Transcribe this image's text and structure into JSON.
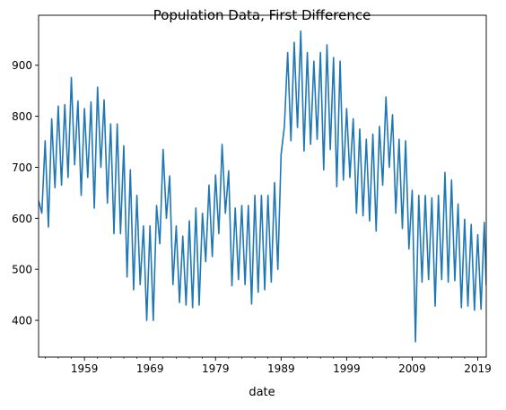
{
  "chart_data": {
    "type": "line",
    "title": "Population Data, First Difference",
    "xlabel": "date",
    "ylabel": "",
    "x_tick_labels": [
      "1959",
      "1969",
      "1979",
      "1989",
      "1999",
      "2009",
      "2019"
    ],
    "x_tick_values": [
      1959,
      1969,
      1979,
      1989,
      1999,
      2009,
      2019
    ],
    "y_tick_labels": [
      "400",
      "500",
      "600",
      "700",
      "800",
      "900"
    ],
    "y_tick_values": [
      400,
      500,
      600,
      700,
      800,
      900
    ],
    "xlim": [
      1952.0,
      2020.3
    ],
    "ylim": [
      328,
      998
    ],
    "grid": false,
    "legend": "none",
    "colors": {
      "line": "#1f77b4",
      "axes": "#000000",
      "background": "#ffffff"
    },
    "series": [
      {
        "x": [
          1952.0,
          1952.5,
          1953.0,
          1953.5,
          1954.0,
          1954.5,
          1955.0,
          1955.5,
          1956.0,
          1956.5,
          1957.0,
          1957.5,
          1958.0,
          1958.5,
          1959.0,
          1959.5,
          1960.0,
          1960.5,
          1961.0,
          1961.5,
          1962.0,
          1962.5,
          1963.0,
          1963.5,
          1964.0,
          1964.5,
          1965.0,
          1965.5,
          1966.0,
          1966.5,
          1967.0,
          1967.5,
          1968.0,
          1968.5,
          1969.0,
          1969.5,
          1970.0,
          1970.5,
          1971.0,
          1971.5,
          1972.0,
          1972.5,
          1973.0,
          1973.5,
          1974.0,
          1974.5,
          1975.0,
          1975.5,
          1976.0,
          1976.5,
          1977.0,
          1977.5,
          1978.0,
          1978.5,
          1979.0,
          1979.5,
          1980.0,
          1980.5,
          1981.0,
          1981.5,
          1982.0,
          1982.5,
          1983.0,
          1983.5,
          1984.0,
          1984.5,
          1985.0,
          1985.5,
          1986.0,
          1986.5,
          1987.0,
          1987.5,
          1988.0,
          1988.5,
          1989.0,
          1989.5,
          1990.0,
          1990.5,
          1991.0,
          1991.5,
          1992.0,
          1992.5,
          1993.0,
          1993.5,
          1994.0,
          1994.5,
          1995.0,
          1995.5,
          1996.0,
          1996.5,
          1997.0,
          1997.5,
          1998.0,
          1998.5,
          1999.0,
          1999.5,
          2000.0,
          2000.5,
          2001.0,
          2001.5,
          2002.0,
          2002.5,
          2003.0,
          2003.5,
          2004.0,
          2004.5,
          2005.0,
          2005.5,
          2006.0,
          2006.5,
          2007.0,
          2007.5,
          2008.0,
          2008.5,
          2009.0,
          2009.5,
          2010.0,
          2010.5,
          2011.0,
          2011.5,
          2012.0,
          2012.5,
          2013.0,
          2013.5,
          2014.0,
          2014.5,
          2015.0,
          2015.5,
          2016.0,
          2016.5,
          2017.0,
          2017.5,
          2018.0,
          2018.5,
          2019.0,
          2019.5,
          2020.0,
          2020.3
        ],
        "y": [
          635,
          610,
          752,
          583,
          795,
          660,
          820,
          665,
          823,
          680,
          876,
          705,
          830,
          645,
          815,
          680,
          828,
          620,
          857,
          700,
          832,
          630,
          785,
          570,
          785,
          570,
          742,
          485,
          695,
          460,
          645,
          470,
          585,
          400,
          585,
          400,
          625,
          550,
          735,
          600,
          683,
          470,
          585,
          435,
          565,
          430,
          595,
          425,
          620,
          430,
          610,
          515,
          665,
          525,
          685,
          570,
          745,
          610,
          693,
          468,
          620,
          480,
          625,
          470,
          625,
          432,
          645,
          455,
          645,
          460,
          645,
          475,
          670,
          500,
          725,
          780,
          925,
          752,
          945,
          778,
          967,
          732,
          925,
          745,
          908,
          755,
          925,
          695,
          940,
          735,
          915,
          662,
          908,
          675,
          815,
          680,
          795,
          610,
          775,
          605,
          755,
          595,
          765,
          575,
          780,
          665,
          838,
          700,
          803,
          610,
          755,
          580,
          752,
          540,
          655,
          358,
          645,
          475,
          645,
          480,
          640,
          428,
          645,
          480,
          690,
          475,
          675,
          478,
          628,
          425,
          598,
          428,
          588,
          420,
          568,
          422,
          592,
          468
        ]
      }
    ]
  }
}
